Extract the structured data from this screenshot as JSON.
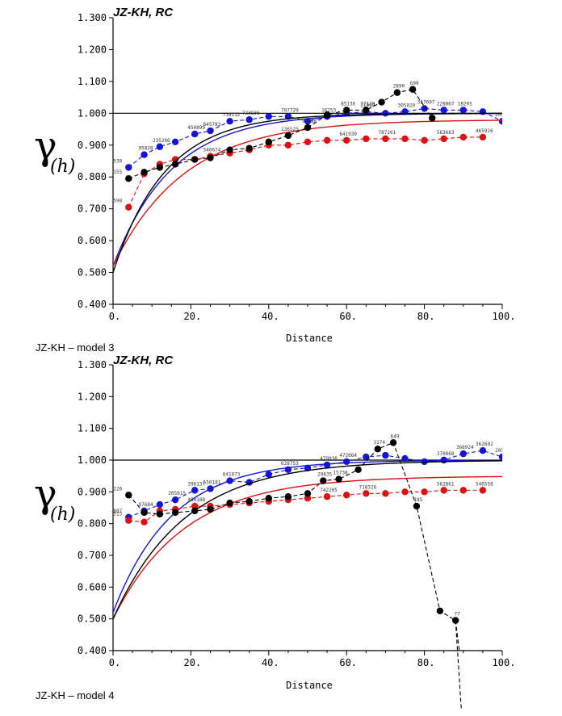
{
  "chart_data": [
    {
      "type": "scatter",
      "title": "JZ-KH, RC",
      "caption": "JZ-KH – model 3",
      "xlabel": "Distance",
      "ylabel_main": "γ",
      "ylabel_sub": "(h)",
      "xlim": [
        0,
        100
      ],
      "ylim": [
        0.4,
        1.3
      ],
      "xticks": [
        0,
        20,
        40,
        60,
        80,
        100
      ],
      "xtick_labels": [
        "0.",
        "20.",
        "40.",
        "60.",
        "80.",
        "100."
      ],
      "yticks": [
        0.4,
        0.5,
        0.6,
        0.7,
        0.8,
        0.9,
        1.0,
        1.1,
        1.2,
        1.3
      ],
      "ytick_labels": [
        "0.400",
        "0.500",
        "0.600",
        "0.700",
        "0.800",
        "0.900",
        "1.000",
        "1.100",
        "1.200",
        "1.300"
      ],
      "sill": 1.0,
      "series": [
        {
          "color": "#1414d8",
          "x": [
            4,
            8,
            12,
            16,
            21,
            25,
            30,
            35,
            40,
            45,
            50,
            55,
            60,
            65,
            70,
            75,
            80,
            85,
            90,
            95,
            100
          ],
          "y": [
            0.83,
            0.87,
            0.895,
            0.91,
            0.935,
            0.945,
            0.975,
            0.98,
            0.99,
            0.99,
            0.975,
            0.99,
            1.0,
            1.005,
            1.0,
            1.005,
            1.015,
            1.01,
            1.01,
            1.005,
            0.975
          ],
          "model": {
            "nugget": 0.52,
            "sill": 1.0,
            "range": 45
          },
          "point_labels": [
            "530",
            "95828",
            "235296",
            "",
            "450899",
            "645783",
            "738112",
            "723836",
            "",
            "707729",
            "",
            "16253",
            "",
            "21909",
            "",
            "305020",
            "357607",
            "228067",
            "18205",
            "",
            "205143"
          ]
        },
        {
          "color": "#e01010",
          "x": [
            4,
            8,
            12,
            16,
            21,
            25,
            30,
            35,
            40,
            45,
            50,
            55,
            60,
            65,
            70,
            75,
            80,
            85,
            90,
            95
          ],
          "y": [
            0.705,
            0.81,
            0.84,
            0.855,
            0.855,
            0.865,
            0.875,
            0.885,
            0.9,
            0.9,
            0.91,
            0.915,
            0.915,
            0.92,
            0.92,
            0.92,
            0.915,
            0.92,
            0.925,
            0.925
          ],
          "model": {
            "nugget": 0.52,
            "sill": 0.98,
            "range": 55
          },
          "point_labels": [
            "598",
            "",
            "",
            "",
            "",
            "546674",
            "",
            "",
            "",
            "",
            "",
            "",
            "641939",
            "",
            "787261",
            "",
            "",
            "563683",
            "",
            "465926"
          ]
        },
        {
          "color": "#000000",
          "x": [
            4,
            8,
            12,
            16,
            21,
            25,
            30,
            35,
            40,
            45,
            50,
            55,
            60,
            65,
            69,
            73,
            77,
            82
          ],
          "y": [
            0.795,
            0.815,
            0.83,
            0.84,
            0.855,
            0.86,
            0.885,
            0.89,
            0.91,
            0.93,
            0.955,
            0.995,
            1.01,
            1.01,
            1.035,
            1.065,
            1.075,
            0.985
          ],
          "model": {
            "nugget": 0.5,
            "sill": 1.0,
            "range": 40
          },
          "point_labels": [
            "155",
            "",
            "",
            "",
            "",
            "",
            "",
            "",
            "",
            "136525",
            "91988",
            "",
            "85136",
            "77119",
            "",
            "2890",
            "699",
            ""
          ]
        }
      ]
    },
    {
      "type": "scatter",
      "title": "JZ-KH, RC",
      "caption": "JZ-KH – model 4",
      "xlabel": "Distance",
      "ylabel_main": "γ",
      "ylabel_sub": "(h)",
      "xlim": [
        0,
        100
      ],
      "ylim": [
        0.4,
        1.3
      ],
      "xticks": [
        0,
        20,
        40,
        60,
        80,
        100
      ],
      "xtick_labels": [
        "0.",
        "20.",
        "40.",
        "60.",
        "80.",
        "100."
      ],
      "yticks": [
        0.4,
        0.5,
        0.6,
        0.7,
        0.8,
        0.9,
        1.0,
        1.1,
        1.2,
        1.3
      ],
      "ytick_labels": [
        "0.400",
        "0.500",
        "0.600",
        "0.700",
        "0.800",
        "0.900",
        "1.000",
        "1.100",
        "1.200",
        "1.300"
      ],
      "sill": 1.0,
      "series": [
        {
          "color": "#1414d8",
          "x": [
            4,
            8,
            12,
            16,
            21,
            25,
            30,
            35,
            40,
            45,
            50,
            55,
            60,
            65,
            70,
            75,
            80,
            85,
            90,
            95,
            100
          ],
          "y": [
            0.82,
            0.84,
            0.86,
            0.875,
            0.905,
            0.91,
            0.935,
            0.93,
            0.955,
            0.97,
            0.975,
            0.985,
            0.995,
            1.01,
            1.015,
            1.005,
            0.995,
            1.0,
            1.02,
            1.03,
            1.01
          ],
          "model": {
            "nugget": 0.52,
            "sill": 1.0,
            "range": 45
          },
          "point_labels": [
            "887",
            "97684",
            "",
            "205915",
            "396137",
            "550181",
            "641073",
            "",
            "",
            "628753",
            "",
            "479938",
            "472084",
            "",
            "",
            "",
            "",
            "370068",
            "368924",
            "362692",
            "205133"
          ]
        },
        {
          "color": "#e01010",
          "x": [
            4,
            8,
            12,
            16,
            21,
            25,
            30,
            35,
            40,
            45,
            50,
            55,
            60,
            65,
            70,
            75,
            80,
            85,
            90,
            95
          ],
          "y": [
            0.81,
            0.805,
            0.84,
            0.845,
            0.855,
            0.855,
            0.86,
            0.865,
            0.87,
            0.875,
            0.88,
            0.885,
            0.89,
            0.895,
            0.895,
            0.9,
            0.9,
            0.905,
            0.905,
            0.905
          ],
          "model": {
            "nugget": 0.5,
            "sill": 0.95,
            "range": 55
          },
          "point_labels": [
            "513",
            "",
            "",
            "",
            "450188",
            "",
            "",
            "",
            "",
            "",
            "",
            "742205",
            "",
            "718326",
            "",
            "",
            "",
            "562861",
            "",
            "546558"
          ]
        },
        {
          "color": "#000000",
          "x": [
            4,
            8,
            12,
            16,
            21,
            25,
            30,
            35,
            40,
            45,
            50,
            54,
            58,
            63,
            68,
            72,
            78,
            84,
            88
          ],
          "y": [
            0.89,
            0.835,
            0.83,
            0.835,
            0.84,
            0.845,
            0.865,
            0.87,
            0.88,
            0.885,
            0.895,
            0.935,
            0.94,
            0.97,
            1.035,
            1.055,
            0.855,
            0.525,
            0.495
          ],
          "model": {
            "nugget": 0.5,
            "sill": 1.0,
            "range": 55
          },
          "point_labels": [
            "226",
            "",
            "",
            "",
            "",
            "",
            "",
            "",
            "",
            "",
            "",
            "29635",
            "15738",
            "",
            "3174",
            "649",
            "185",
            "",
            "77"
          ]
        }
      ]
    }
  ]
}
